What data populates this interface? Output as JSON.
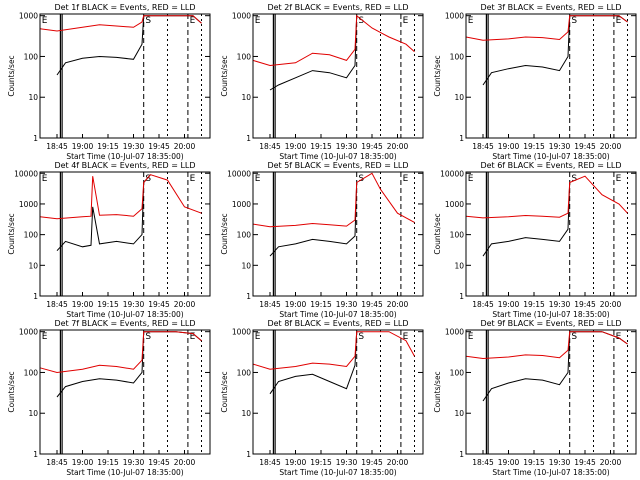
{
  "figure": {
    "background": "#ffffff",
    "series_colors": {
      "events": "#000000",
      "lld": "#e00000"
    }
  },
  "chart_data": [
    {
      "type": "line",
      "title": "Det 1f BLACK = Events, RED = LLD",
      "xlabel": "Start Time (10-Jul-07 18:35:00)",
      "ylabel": "Counts/sec",
      "xticks": [
        "18:45",
        "19:00",
        "19:15",
        "19:30",
        "19:45",
        "20:00"
      ],
      "yticks": [
        "1",
        "10",
        "100",
        "1000"
      ],
      "ylim": [
        1,
        1100
      ],
      "yscale": "log",
      "region_markers": [
        "E",
        "S",
        "E"
      ],
      "grid": false,
      "series": [
        {
          "key": "events",
          "color": "#000000",
          "x": [
            "18:45",
            "18:50",
            "19:00",
            "19:10",
            "19:20",
            "19:30",
            "19:35",
            "19:36",
            "19:55",
            "20:05",
            "20:10"
          ],
          "values": [
            35,
            70,
            90,
            100,
            95,
            85,
            200,
            1000,
            1000,
            1000,
            650
          ]
        },
        {
          "key": "lld",
          "color": "#e00000",
          "x": [
            "18:35",
            "18:45",
            "19:00",
            "19:10",
            "19:20",
            "19:30",
            "19:35",
            "19:36",
            "19:55",
            "20:05",
            "20:10"
          ],
          "values": [
            480,
            420,
            520,
            600,
            560,
            520,
            700,
            1000,
            1000,
            1000,
            650
          ]
        }
      ]
    },
    {
      "type": "line",
      "title": "Det 2f BLACK = Events, RED = LLD",
      "xlabel": "Start Time (10-Jul-07 18:35:00)",
      "ylabel": "Counts/sec",
      "xticks": [
        "18:45",
        "19:00",
        "19:15",
        "19:30",
        "19:45",
        "20:00"
      ],
      "yticks": [
        "1",
        "10",
        "100",
        "1000"
      ],
      "ylim": [
        1,
        1100
      ],
      "yscale": "log",
      "region_markers": [
        "E",
        "S",
        "E"
      ],
      "grid": false,
      "series": [
        {
          "key": "events",
          "color": "#000000",
          "x": [
            "18:45",
            "18:50",
            "19:00",
            "19:10",
            "19:20",
            "19:30",
            "19:35",
            "19:36"
          ],
          "values": [
            15,
            20,
            30,
            45,
            40,
            30,
            60,
            1000
          ]
        },
        {
          "key": "lld",
          "color": "#e00000",
          "x": [
            "18:35",
            "18:45",
            "19:00",
            "19:10",
            "19:20",
            "19:30",
            "19:35",
            "19:36",
            "19:45",
            "19:55",
            "20:05",
            "20:10"
          ],
          "values": [
            80,
            60,
            70,
            120,
            110,
            80,
            150,
            1000,
            500,
            300,
            200,
            130
          ]
        }
      ]
    },
    {
      "type": "line",
      "title": "Det 3f BLACK = Events, RED = LLD",
      "xlabel": "Start Time (10-Jul-07 18:35:00)",
      "ylabel": "Counts/sec",
      "xticks": [
        "18:45",
        "19:00",
        "19:15",
        "19:30",
        "19:45",
        "20:00"
      ],
      "yticks": [
        "1",
        "10",
        "100",
        "1000"
      ],
      "ylim": [
        1,
        1100
      ],
      "yscale": "log",
      "region_markers": [
        "E",
        "S",
        "E"
      ],
      "grid": false,
      "series": [
        {
          "key": "events",
          "color": "#000000",
          "x": [
            "18:45",
            "18:50",
            "19:00",
            "19:10",
            "19:20",
            "19:30",
            "19:35",
            "19:36",
            "19:55",
            "20:05",
            "20:10"
          ],
          "values": [
            20,
            40,
            50,
            60,
            55,
            45,
            100,
            1000,
            1000,
            1000,
            700
          ]
        },
        {
          "key": "lld",
          "color": "#e00000",
          "x": [
            "18:35",
            "18:45",
            "19:00",
            "19:10",
            "19:20",
            "19:30",
            "19:35",
            "19:36",
            "19:55",
            "20:05",
            "20:10"
          ],
          "values": [
            300,
            250,
            270,
            300,
            290,
            260,
            400,
            1000,
            1000,
            1000,
            700
          ]
        }
      ]
    },
    {
      "type": "line",
      "title": "Det 4f BLACK = Events, RED = LLD",
      "xlabel": "Start Time (10-Jul-07 18:35:00)",
      "ylabel": "Counts/sec",
      "xticks": [
        "18:45",
        "19:00",
        "19:15",
        "19:30",
        "19:45",
        "20:00"
      ],
      "yticks": [
        "1",
        "10",
        "100",
        "1000",
        "10000"
      ],
      "ylim": [
        1,
        11000
      ],
      "yscale": "log",
      "region_markers": [
        "E",
        "S",
        "E"
      ],
      "grid": false,
      "series": [
        {
          "key": "events",
          "color": "#000000",
          "x": [
            "18:45",
            "18:50",
            "19:00",
            "19:05",
            "19:06",
            "19:10",
            "19:20",
            "19:30",
            "19:35",
            "19:36",
            "19:40"
          ],
          "values": [
            30,
            60,
            40,
            45,
            800,
            50,
            60,
            50,
            100,
            5000,
            9000
          ]
        },
        {
          "key": "lld",
          "color": "#e00000",
          "x": [
            "18:35",
            "18:45",
            "19:00",
            "19:05",
            "19:06",
            "19:10",
            "19:20",
            "19:30",
            "19:35",
            "19:36",
            "19:40",
            "19:50",
            "20:00",
            "20:10"
          ],
          "values": [
            380,
            330,
            380,
            400,
            8000,
            430,
            450,
            400,
            700,
            5000,
            9000,
            6000,
            800,
            500
          ]
        }
      ]
    },
    {
      "type": "line",
      "title": "Det 5f BLACK = Events, RED = LLD",
      "xlabel": "Start Time (10-Jul-07 18:35:00)",
      "ylabel": "Counts/sec",
      "xticks": [
        "18:45",
        "19:00",
        "19:15",
        "19:30",
        "19:45",
        "20:00"
      ],
      "yticks": [
        "1",
        "10",
        "100",
        "1000",
        "10000"
      ],
      "ylim": [
        1,
        11000
      ],
      "yscale": "log",
      "region_markers": [
        "E",
        "S",
        "E"
      ],
      "grid": false,
      "series": [
        {
          "key": "events",
          "color": "#000000",
          "x": [
            "18:45",
            "18:50",
            "19:00",
            "19:10",
            "19:20",
            "19:30",
            "19:35",
            "19:36"
          ],
          "values": [
            20,
            40,
            50,
            70,
            60,
            50,
            90,
            5000
          ]
        },
        {
          "key": "lld",
          "color": "#e00000",
          "x": [
            "18:35",
            "18:45",
            "19:00",
            "19:10",
            "19:20",
            "19:30",
            "19:35",
            "19:36",
            "19:45",
            "19:50",
            "20:00",
            "20:10"
          ],
          "values": [
            220,
            180,
            200,
            230,
            210,
            190,
            300,
            5000,
            10000,
            3000,
            500,
            250
          ]
        }
      ]
    },
    {
      "type": "line",
      "title": "Det 6f BLACK = Events, RED = LLD",
      "xlabel": "Start Time (10-Jul-07 18:35:00)",
      "ylabel": "Counts/sec",
      "xticks": [
        "18:45",
        "19:00",
        "19:15",
        "19:30",
        "19:45",
        "20:00"
      ],
      "yticks": [
        "1",
        "10",
        "100",
        "1000",
        "10000"
      ],
      "ylim": [
        1,
        11000
      ],
      "yscale": "log",
      "region_markers": [
        "E",
        "S",
        "E"
      ],
      "grid": false,
      "series": [
        {
          "key": "events",
          "color": "#000000",
          "x": [
            "18:45",
            "18:50",
            "19:00",
            "19:10",
            "19:20",
            "19:30",
            "19:35",
            "19:36"
          ],
          "values": [
            20,
            50,
            60,
            80,
            70,
            60,
            150,
            5000
          ]
        },
        {
          "key": "lld",
          "color": "#e00000",
          "x": [
            "18:35",
            "18:45",
            "19:00",
            "19:10",
            "19:20",
            "19:30",
            "19:35",
            "19:36",
            "19:45",
            "19:55",
            "20:05",
            "20:10"
          ],
          "values": [
            400,
            350,
            380,
            420,
            400,
            370,
            500,
            5000,
            8000,
            2000,
            1000,
            500
          ]
        }
      ]
    },
    {
      "type": "line",
      "title": "Det 7f BLACK = Events, RED = LLD",
      "xlabel": "Start Time (10-Jul-07 18:35:00)",
      "ylabel": "Counts/sec",
      "xticks": [
        "18:45",
        "19:00",
        "19:15",
        "19:30",
        "19:45",
        "20:00"
      ],
      "yticks": [
        "1",
        "10",
        "100",
        "1000"
      ],
      "ylim": [
        1,
        1100
      ],
      "yscale": "log",
      "region_markers": [
        "E",
        "S",
        "E"
      ],
      "grid": false,
      "series": [
        {
          "key": "events",
          "color": "#000000",
          "x": [
            "18:45",
            "18:50",
            "19:00",
            "19:10",
            "19:20",
            "19:30",
            "19:35",
            "19:36",
            "19:55",
            "20:05",
            "20:10"
          ],
          "values": [
            25,
            45,
            60,
            70,
            65,
            55,
            100,
            1000,
            1000,
            900,
            600
          ]
        },
        {
          "key": "lld",
          "color": "#e00000",
          "x": [
            "18:35",
            "18:45",
            "19:00",
            "19:10",
            "19:20",
            "19:30",
            "19:35",
            "19:36",
            "19:55",
            "20:05",
            "20:10"
          ],
          "values": [
            130,
            100,
            120,
            150,
            140,
            120,
            200,
            1000,
            1000,
            900,
            600
          ]
        }
      ]
    },
    {
      "type": "line",
      "title": "Det 8f BLACK = Events, RED = LLD",
      "xlabel": "Start Time (10-Jul-07 18:35:00)",
      "ylabel": "Counts/sec",
      "xticks": [
        "18:45",
        "19:00",
        "19:15",
        "19:30",
        "19:45",
        "20:00"
      ],
      "yticks": [
        "1",
        "10",
        "100",
        "1000"
      ],
      "ylim": [
        1,
        1100
      ],
      "yscale": "log",
      "region_markers": [
        "E",
        "S",
        "E"
      ],
      "grid": false,
      "series": [
        {
          "key": "events",
          "color": "#000000",
          "x": [
            "18:45",
            "18:50",
            "19:00",
            "19:10",
            "19:20",
            "19:30",
            "19:35",
            "19:36"
          ],
          "values": [
            30,
            60,
            80,
            90,
            60,
            40,
            150,
            1000
          ]
        },
        {
          "key": "lld",
          "color": "#e00000",
          "x": [
            "18:35",
            "18:45",
            "19:00",
            "19:10",
            "19:20",
            "19:30",
            "19:35",
            "19:36",
            "19:55",
            "20:05",
            "20:10"
          ],
          "values": [
            160,
            120,
            140,
            170,
            160,
            140,
            250,
            1000,
            1000,
            600,
            250
          ]
        }
      ]
    },
    {
      "type": "line",
      "title": "Det 9f BLACK = Events, RED = LLD",
      "xlabel": "Start Time (10-Jul-07 18:35:00)",
      "ylabel": "Counts/sec",
      "xticks": [
        "18:45",
        "19:00",
        "19:15",
        "19:30",
        "19:45",
        "20:00"
      ],
      "yticks": [
        "1",
        "10",
        "100",
        "1000"
      ],
      "ylim": [
        1,
        1100
      ],
      "yscale": "log",
      "region_markers": [
        "E",
        "S",
        "E"
      ],
      "grid": false,
      "series": [
        {
          "key": "events",
          "color": "#000000",
          "x": [
            "18:45",
            "18:50",
            "19:00",
            "19:10",
            "19:20",
            "19:30",
            "19:35",
            "19:36",
            "19:55",
            "20:05",
            "20:10"
          ],
          "values": [
            20,
            40,
            55,
            70,
            65,
            50,
            100,
            1000,
            1000,
            700,
            500
          ]
        },
        {
          "key": "lld",
          "color": "#e00000",
          "x": [
            "18:35",
            "18:45",
            "19:00",
            "19:10",
            "19:20",
            "19:30",
            "19:35",
            "19:36",
            "19:55",
            "20:05",
            "20:10"
          ],
          "values": [
            250,
            220,
            240,
            270,
            260,
            230,
            350,
            1000,
            1000,
            700,
            500
          ]
        }
      ]
    }
  ]
}
